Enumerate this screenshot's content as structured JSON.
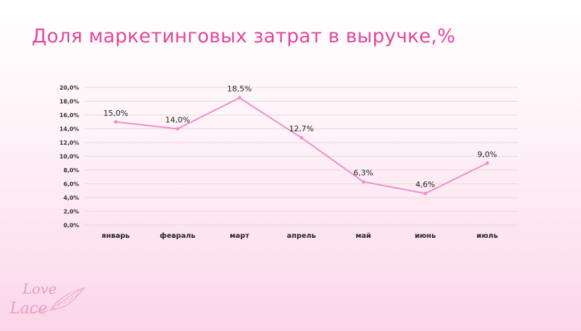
{
  "slide": {
    "title": "Доля маркетинговых затрат в выручке,%"
  },
  "logo": {
    "line1": "Love",
    "line2": "Lace"
  },
  "chart_data": {
    "type": "line",
    "title": "Доля маркетинговых затрат в выручке,%",
    "xlabel": "",
    "ylabel": "",
    "categories": [
      "январь",
      "февраль",
      "март",
      "апрель",
      "май",
      "июнь",
      "июль"
    ],
    "series": [
      {
        "values": [
          15.0,
          14.0,
          18.5,
          12.7,
          6.3,
          4.6,
          9.0
        ],
        "labels": [
          "15,0%",
          "14,0%",
          "18,5%",
          "12,7%",
          "6,3%",
          "4,6%",
          "9,0%"
        ]
      }
    ],
    "ylim": [
      0,
      20
    ],
    "yticks": [
      0,
      2,
      4,
      6,
      8,
      10,
      12,
      14,
      16,
      18,
      20
    ],
    "ytick_labels": [
      "0,0%",
      "2,0%",
      "4,0%",
      "6,0%",
      "8,0%",
      "10,0%",
      "12,0%",
      "14,0%",
      "16,0%",
      "18,0%",
      "20,0%"
    ],
    "grid": true,
    "legend": "none",
    "colors": {
      "line": "#f08fca",
      "marker": "#f08fca",
      "grid": "#dcdcdc",
      "text": "#222222"
    }
  }
}
